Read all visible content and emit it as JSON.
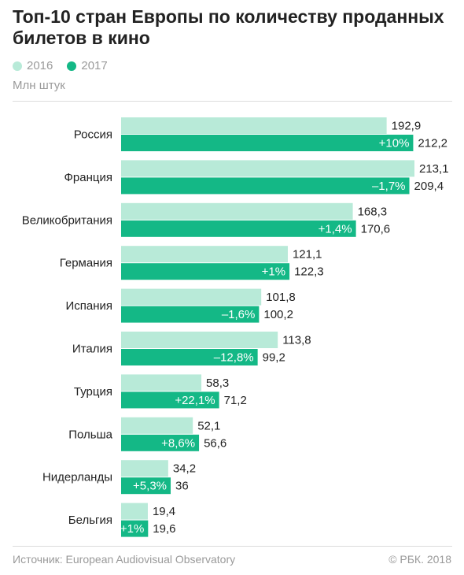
{
  "title": "Топ-10 стран Европы по количеству проданных билетов в кино",
  "unit": "Млн штук",
  "legend": [
    {
      "label": "2016",
      "color": "#b8ead8"
    },
    {
      "label": "2017",
      "color": "#14b886"
    }
  ],
  "source": "Источник: European Audiovisual Observatory",
  "copyright": "© РБК. 2018",
  "chart_data": {
    "type": "bar",
    "orientation": "horizontal",
    "categories": [
      "Россия",
      "Франция",
      "Великобритания",
      "Германия",
      "Испания",
      "Италия",
      "Турция",
      "Польша",
      "Нидерланды",
      "Бельгия"
    ],
    "series": [
      {
        "name": "2016",
        "values": [
          192.9,
          213.1,
          168.3,
          121.1,
          101.8,
          113.8,
          58.3,
          52.1,
          34.2,
          19.4
        ],
        "labels": [
          "192,9",
          "213,1",
          "168,3",
          "121,1",
          "101,8",
          "113,8",
          "58,3",
          "52,1",
          "34,2",
          "19,4"
        ],
        "color": "#b8ead8"
      },
      {
        "name": "2017",
        "values": [
          212.2,
          209.4,
          170.6,
          122.3,
          100.2,
          99.2,
          71.2,
          56.6,
          36,
          19.6
        ],
        "labels": [
          "212,2",
          "209,4",
          "170,6",
          "122,3",
          "100,2",
          "99,2",
          "71,2",
          "56,6",
          "36",
          "19,6"
        ],
        "color": "#14b886"
      }
    ],
    "changes": [
      "+10%",
      "–1,7%",
      "+1,4%",
      "+1%",
      "–1,6%",
      "–12,8%",
      "+22,1%",
      "+8,6%",
      "+5,3%",
      "+1%"
    ],
    "xlim": [
      0,
      213.1
    ],
    "grid": false
  }
}
